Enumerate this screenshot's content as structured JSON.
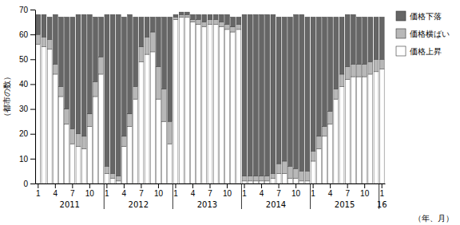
{
  "chart_data": {
    "type": "bar",
    "stacked": true,
    "grid": false,
    "legend": "right",
    "ylabel": "（都市の数）",
    "xlabel": "（年、月）",
    "annotations": [
      "2011",
      "2012",
      "2013",
      "2014",
      "2015",
      "16"
    ],
    "categories": [
      "1",
      null,
      null,
      "4",
      null,
      null,
      "7",
      null,
      null,
      "10",
      null,
      null,
      "1",
      null,
      null,
      "4",
      null,
      null,
      "7",
      null,
      null,
      "10",
      null,
      null,
      "1",
      null,
      null,
      "4",
      null,
      null,
      "7",
      null,
      null,
      "10",
      null,
      null,
      "1",
      null,
      null,
      "4",
      null,
      null,
      "7",
      null,
      null,
      "10",
      null,
      null,
      "1",
      null,
      null,
      "4",
      null,
      null,
      "7",
      null,
      null,
      "10",
      null,
      null,
      "1"
    ],
    "ylim": [
      0,
      70
    ],
    "yticks": [
      0,
      10,
      20,
      30,
      40,
      50,
      60,
      70
    ],
    "series": [
      {
        "name": "価格上昇",
        "color": "#ffffff",
        "values": [
          56,
          55,
          54,
          44,
          35,
          24,
          16,
          15,
          14,
          23,
          35,
          44,
          4,
          2,
          1,
          15,
          23,
          34,
          49,
          52,
          53,
          34,
          25,
          16,
          66,
          67,
          67,
          65,
          64,
          63,
          64,
          64,
          63,
          62,
          61,
          62,
          1,
          1,
          1,
          1,
          1,
          2,
          4,
          4,
          2,
          2,
          1,
          1,
          9,
          14,
          19,
          24,
          34,
          39,
          42,
          43,
          43,
          43,
          44,
          45,
          46
        ]
      },
      {
        "name": "価格横ばい",
        "color": "#b8b8b8",
        "values": [
          4,
          4,
          4,
          4,
          4,
          6,
          6,
          5,
          5,
          5,
          6,
          7,
          3,
          2,
          2,
          4,
          5,
          5,
          6,
          7,
          8,
          13,
          13,
          9,
          1,
          1,
          1,
          1,
          2,
          2,
          2,
          2,
          2,
          2,
          2,
          2,
          2,
          2,
          2,
          2,
          2,
          2,
          4,
          5,
          5,
          4,
          4,
          4,
          4,
          5,
          4,
          5,
          4,
          5,
          5,
          5,
          5,
          5,
          5,
          5,
          4
        ]
      },
      {
        "name": "価格下落",
        "color": "#666666",
        "values": [
          8,
          9,
          9,
          20,
          28,
          37,
          45,
          48,
          49,
          40,
          26,
          16,
          61,
          64,
          65,
          48,
          40,
          28,
          12,
          8,
          6,
          20,
          29,
          42,
          1,
          1,
          1,
          2,
          2,
          3,
          2,
          2,
          3,
          4,
          4,
          3,
          65,
          65,
          65,
          65,
          65,
          64,
          59,
          58,
          60,
          62,
          63,
          62,
          54,
          48,
          44,
          38,
          29,
          23,
          21,
          20,
          19,
          19,
          18,
          17,
          17
        ]
      }
    ]
  }
}
